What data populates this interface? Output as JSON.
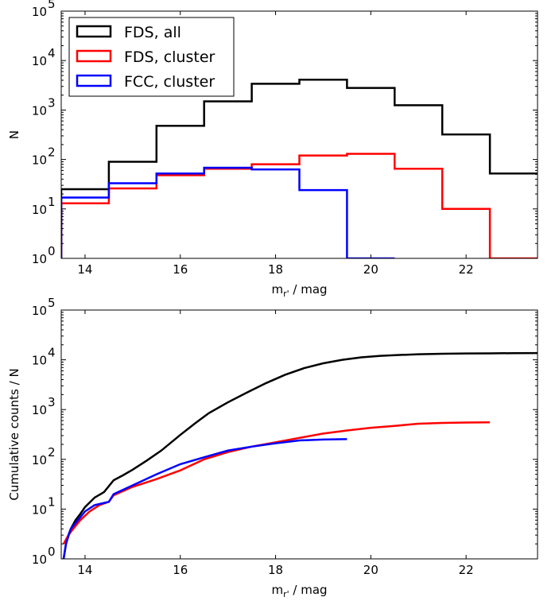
{
  "chart_data": [
    {
      "type": "step",
      "xlabel": "m",
      "xlabel_subscript": "r'",
      "xlabel_suffix": " / mag",
      "ylabel": "N",
      "xlim": [
        13.5,
        23.5
      ],
      "ylim": [
        1,
        100000
      ],
      "yscale": "log",
      "x_ticks": [
        "14",
        "16",
        "18",
        "20",
        "22"
      ],
      "y_ticks": [
        {
          "base": "10",
          "exp": "0"
        },
        {
          "base": "10",
          "exp": "1"
        },
        {
          "base": "10",
          "exp": "2"
        },
        {
          "base": "10",
          "exp": "3"
        },
        {
          "base": "10",
          "exp": "4"
        },
        {
          "base": "10",
          "exp": "5"
        }
      ],
      "legend_position": "top-left",
      "series": [
        {
          "name": "FDS, all",
          "color": "#000000",
          "edges": [
            13.5,
            14.5,
            15.5,
            16.5,
            17.5,
            18.5,
            19.5,
            20.5,
            21.5,
            22.5,
            23.5
          ],
          "values": [
            25,
            90,
            480,
            1500,
            3400,
            4100,
            2800,
            1250,
            320,
            52
          ]
        },
        {
          "name": "FDS, cluster",
          "color": "#ff0000",
          "edges": [
            13.5,
            14.5,
            15.5,
            16.5,
            17.5,
            18.5,
            19.5,
            20.5,
            21.5,
            22.5,
            23.5
          ],
          "values": [
            13,
            26,
            48,
            65,
            80,
            120,
            130,
            65,
            10,
            1
          ]
        },
        {
          "name": "FCC, cluster",
          "color": "#0000ff",
          "edges": [
            13.5,
            14.5,
            15.5,
            16.5,
            17.5,
            18.5,
            19.5,
            20.5
          ],
          "values": [
            17,
            33,
            52,
            68,
            63,
            24,
            1
          ]
        }
      ]
    },
    {
      "type": "line",
      "xlabel": "m",
      "xlabel_subscript": "r'",
      "xlabel_suffix": " / mag",
      "ylabel": "Cumulative counts / N",
      "xlim": [
        13.5,
        23.5
      ],
      "ylim": [
        1,
        100000
      ],
      "yscale": "log",
      "x_ticks": [
        "14",
        "16",
        "18",
        "20",
        "22"
      ],
      "y_ticks": [
        {
          "base": "10",
          "exp": "0"
        },
        {
          "base": "10",
          "exp": "1"
        },
        {
          "base": "10",
          "exp": "2"
        },
        {
          "base": "10",
          "exp": "3"
        },
        {
          "base": "10",
          "exp": "4"
        },
        {
          "base": "10",
          "exp": "5"
        }
      ],
      "series": [
        {
          "color": "#000000",
          "x": [
            13.55,
            13.6,
            13.65,
            13.7,
            13.8,
            13.9,
            14.0,
            14.2,
            14.4,
            14.6,
            14.8,
            15.0,
            15.3,
            15.6,
            16.0,
            16.3,
            16.6,
            17.0,
            17.4,
            17.8,
            18.2,
            18.6,
            19.0,
            19.4,
            19.8,
            20.2,
            20.6,
            21.0,
            21.5,
            22.0,
            22.5,
            23.0,
            23.5
          ],
          "y": [
            1,
            2,
            3,
            4,
            6,
            8,
            11,
            17,
            22,
            38,
            48,
            62,
            95,
            150,
            310,
            520,
            850,
            1400,
            2200,
            3400,
            5000,
            6800,
            8500,
            10000,
            11200,
            12000,
            12500,
            12900,
            13200,
            13400,
            13500,
            13600,
            13650
          ]
        },
        {
          "color": "#ff0000",
          "x": [
            13.55,
            13.65,
            13.75,
            13.9,
            14.1,
            14.3,
            14.5,
            14.6,
            15.0,
            15.5,
            16.0,
            16.5,
            17.0,
            17.5,
            18.0,
            18.5,
            19.0,
            19.5,
            20.0,
            20.5,
            21.0,
            21.5,
            22.0,
            22.5
          ],
          "y": [
            2,
            3,
            4,
            6,
            9,
            12,
            14,
            19,
            28,
            40,
            60,
            100,
            140,
            180,
            220,
            270,
            330,
            380,
            430,
            470,
            520,
            540,
            550,
            555
          ]
        },
        {
          "color": "#0000ff",
          "x": [
            13.55,
            13.6,
            13.7,
            13.85,
            14.0,
            14.2,
            14.5,
            14.6,
            15.0,
            15.5,
            16.0,
            16.5,
            17.0,
            17.5,
            18.0,
            18.5,
            19.0,
            19.5
          ],
          "y": [
            1,
            2,
            4,
            6,
            9,
            12,
            14,
            20,
            30,
            50,
            80,
            110,
            150,
            180,
            210,
            240,
            250,
            255
          ]
        }
      ]
    }
  ]
}
